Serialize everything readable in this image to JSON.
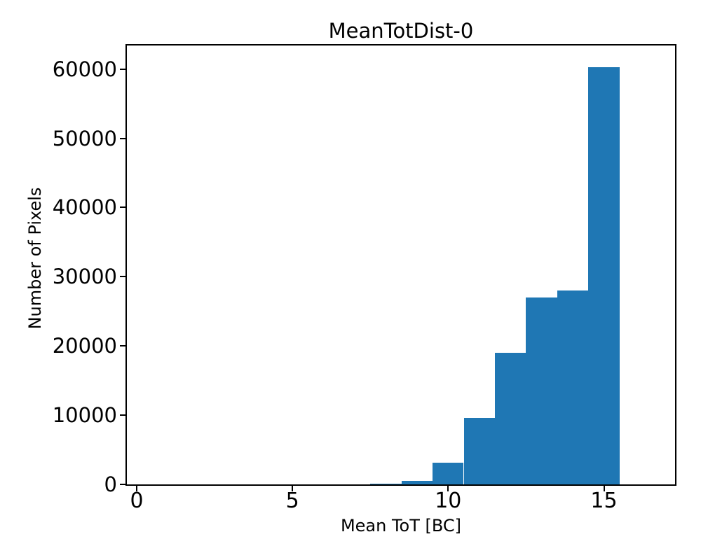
{
  "figure": {
    "background_color": "#ffffff",
    "text_color": "#000000"
  },
  "chart_data": {
    "type": "bar",
    "subtype": "histogram",
    "title": "MeanTotDist-0",
    "xlabel": "Mean ToT [BC]",
    "ylabel": "Number of Pixels",
    "bar_color": "#1f77b4",
    "bin_edges": [
      7.5,
      8.5,
      9.5,
      10.5,
      11.5,
      12.5,
      13.5,
      14.5,
      15.5
    ],
    "values": [
      150,
      550,
      3150,
      9650,
      19000,
      27000,
      28000,
      60300
    ],
    "xticks": [
      0,
      5,
      10,
      15
    ],
    "yticks": [
      0,
      10000,
      20000,
      30000,
      40000,
      50000,
      60000
    ],
    "xlim": [
      -0.315,
      17.285
    ],
    "ylim": [
      0,
      63400
    ],
    "grid": false,
    "legend": null
  }
}
